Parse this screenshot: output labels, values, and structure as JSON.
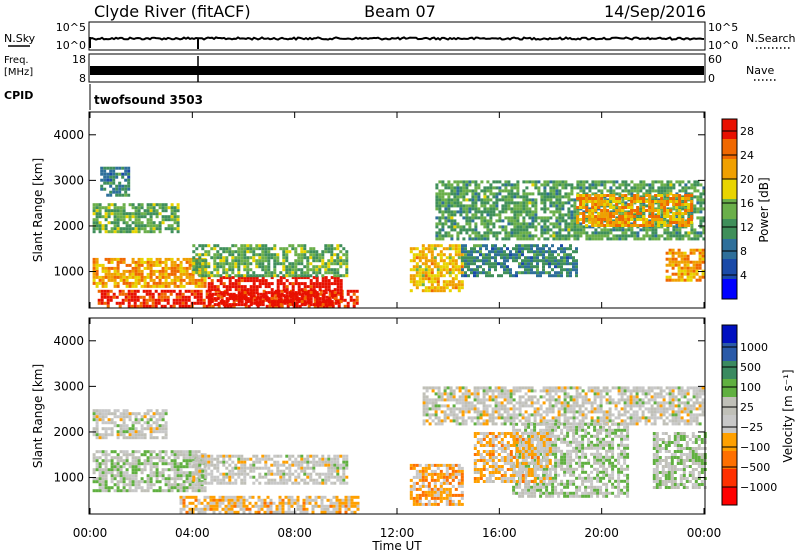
{
  "header": {
    "station": "Clyde River (fitACF)",
    "beam": "Beam 07",
    "date": "14/Sep/2016"
  },
  "panels": {
    "nsky": {
      "left_label": "N.Sky",
      "right_label": "N.Search",
      "tick_top": "10^5",
      "tick_bottom": "10^0",
      "right_tick_top": "10^5",
      "right_tick_bottom": "10^0"
    },
    "freq": {
      "left_label_1": "Freq.",
      "left_label_2": "[MHz]",
      "tick_top": "18",
      "tick_bottom": "8",
      "right_label": "Nave",
      "right_tick_top": "60",
      "right_tick_bottom": "0"
    },
    "cpid": {
      "left_label": "CPID",
      "value": "twofsound 3503"
    }
  },
  "colors": {
    "power": [
      "#0000ff",
      "#1a4aa8",
      "#2e6f9a",
      "#3f8f5a",
      "#6aaf4a",
      "#e8d400",
      "#f0a000",
      "#f06800",
      "#e81000"
    ],
    "velocity": [
      "#ff0000",
      "#ff3000",
      "#ff7000",
      "#ffa000",
      "#c8c8c8",
      "#c0c0b8",
      "#60b040",
      "#3a8a60",
      "#2a5aa8",
      "#0010c0"
    ]
  },
  "chart_data": [
    {
      "type": "heatmap",
      "name": "power",
      "xlabel": "",
      "ylabel": "Slant Range [km]",
      "x_ticks": [
        "00:00",
        "04:00",
        "08:00",
        "12:00",
        "16:00",
        "20:00",
        "00:00"
      ],
      "xlim": [
        0,
        24
      ],
      "y_ticks": [
        "1000",
        "2000",
        "3000",
        "4000"
      ],
      "ylim": [
        200,
        4500
      ],
      "colorbar": {
        "label": "Power [dB]",
        "ticks": [
          "4",
          "8",
          "12",
          "16",
          "20",
          "24",
          "28"
        ],
        "range": [
          0,
          30
        ]
      },
      "regions": [
        {
          "t": [
            0.3,
            10.5
          ],
          "r": [
            250,
            600
          ],
          "level": 28
        },
        {
          "t": [
            4.6,
            9.8
          ],
          "r": [
            300,
            900
          ],
          "level": 30
        },
        {
          "t": [
            0.1,
            4.5
          ],
          "r": [
            700,
            1300
          ],
          "level": 22
        },
        {
          "t": [
            0.1,
            3.5
          ],
          "r": [
            1900,
            2500
          ],
          "level": 14
        },
        {
          "t": [
            0.4,
            1.5
          ],
          "r": [
            2700,
            3300
          ],
          "level": 10
        },
        {
          "t": [
            4.0,
            10.0
          ],
          "r": [
            900,
            1600
          ],
          "level": 14
        },
        {
          "t": [
            12.5,
            14.5
          ],
          "r": [
            600,
            1600
          ],
          "level": 20
        },
        {
          "t": [
            13.5,
            24.0
          ],
          "r": [
            1700,
            3000
          ],
          "level": 13
        },
        {
          "t": [
            19.0,
            23.5
          ],
          "r": [
            2000,
            2700
          ],
          "level": 22
        },
        {
          "t": [
            22.5,
            24.0
          ],
          "r": [
            800,
            1500
          ],
          "level": 22
        },
        {
          "t": [
            14.5,
            19.0
          ],
          "r": [
            900,
            1600
          ],
          "level": 10
        }
      ]
    },
    {
      "type": "heatmap",
      "name": "velocity",
      "xlabel": "Time UT",
      "ylabel": "Slant Range [km]",
      "x_ticks": [
        "00:00",
        "04:00",
        "08:00",
        "12:00",
        "16:00",
        "20:00",
        "00:00"
      ],
      "xlim": [
        0,
        24
      ],
      "y_ticks": [
        "1000",
        "2000",
        "3000",
        "4000"
      ],
      "ylim": [
        200,
        4500
      ],
      "colorbar": {
        "label": "Velocity [m s⁻¹]",
        "ticks": [
          "1000",
          "500",
          "100",
          "25",
          "−25",
          "−100",
          "−500",
          "−1000"
        ],
        "range": [
          -1000,
          1000
        ]
      },
      "regions": [
        {
          "t": [
            0.1,
            4.5
          ],
          "r": [
            700,
            1600
          ],
          "level": 150
        },
        {
          "t": [
            0.1,
            3.0
          ],
          "r": [
            1900,
            2500
          ],
          "level": 0
        },
        {
          "t": [
            4.0,
            10.0
          ],
          "r": [
            900,
            1500
          ],
          "level": 0
        },
        {
          "t": [
            3.5,
            10.5
          ],
          "r": [
            250,
            600
          ],
          "level": -200
        },
        {
          "t": [
            12.5,
            14.5
          ],
          "r": [
            400,
            1300
          ],
          "level": -300
        },
        {
          "t": [
            13.0,
            24.0
          ],
          "r": [
            2200,
            3000
          ],
          "level": 0
        },
        {
          "t": [
            16.5,
            21.0
          ],
          "r": [
            600,
            2200
          ],
          "level": 120
        },
        {
          "t": [
            22.0,
            24.0
          ],
          "r": [
            800,
            2000
          ],
          "level": 150
        },
        {
          "t": [
            15.0,
            18.0
          ],
          "r": [
            900,
            2000
          ],
          "level": -200
        }
      ]
    }
  ]
}
